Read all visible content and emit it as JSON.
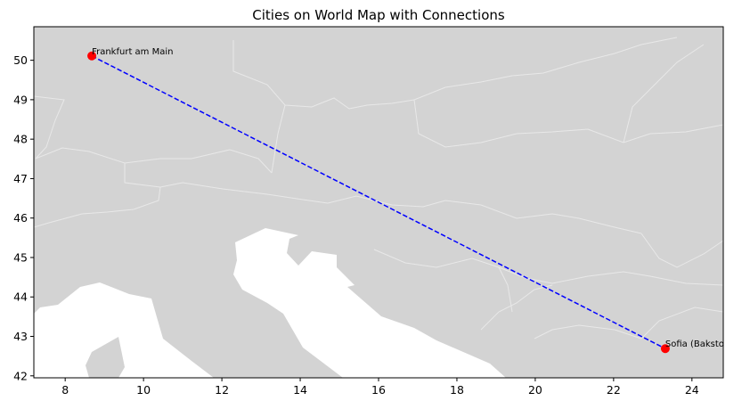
{
  "chart_data": {
    "type": "scatter",
    "title": "Cities on World Map with Connections",
    "xlabel": "",
    "ylabel": "",
    "xlim": [
      7.2,
      24.8
    ],
    "ylim": [
      41.95,
      50.85
    ],
    "xticks": [
      8,
      10,
      12,
      14,
      16,
      18,
      20,
      22,
      24
    ],
    "yticks": [
      42,
      43,
      44,
      45,
      46,
      47,
      48,
      49,
      50
    ],
    "grid": false,
    "land_color": "#d3d3d3",
    "sea_color": "#ffffff",
    "border_color": "#e6e6e6",
    "points": [
      {
        "label": "Frankfurt am Main",
        "lon": 8.68,
        "lat": 50.11,
        "color": "#ff0000"
      },
      {
        "label": "Sofia (Bakston)",
        "lon": 23.32,
        "lat": 42.69,
        "color": "#ff0000"
      }
    ],
    "connections": [
      {
        "from": 0,
        "to": 1,
        "color": "#0000ff",
        "style": "dashed"
      }
    ]
  }
}
